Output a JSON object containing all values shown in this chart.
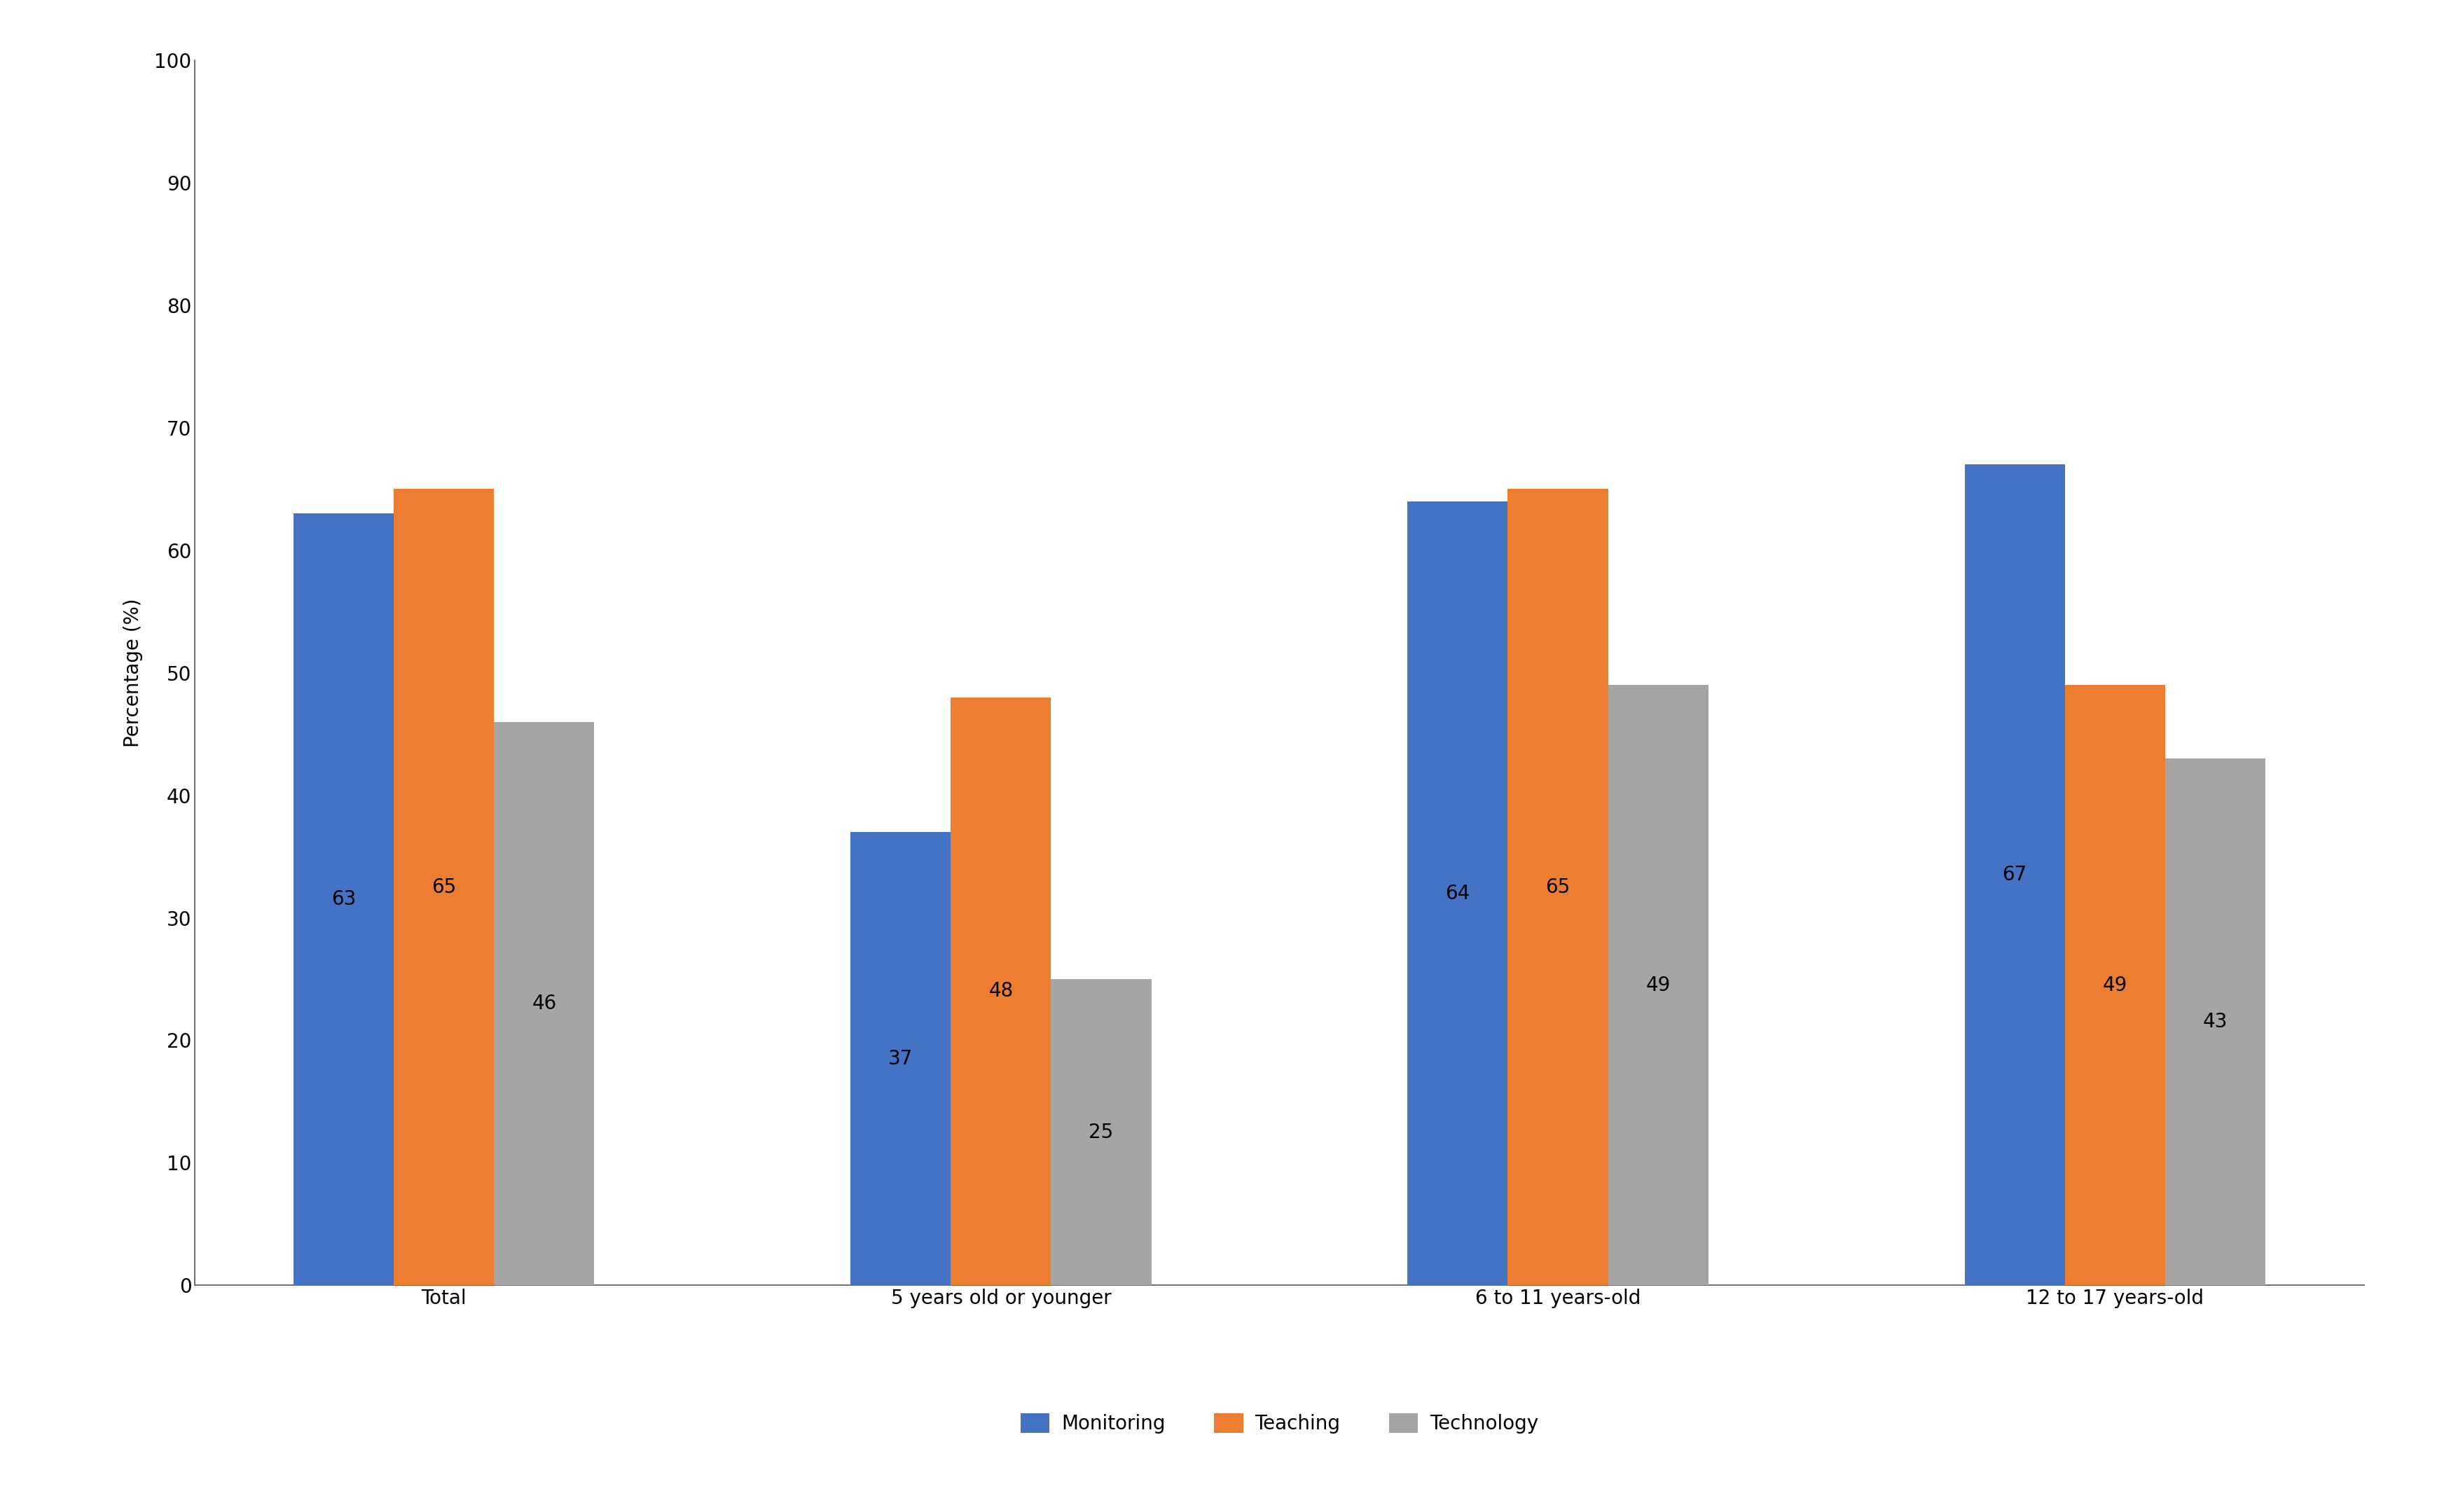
{
  "categories": [
    "Total",
    "5 years old or younger",
    "6 to 11 years-old",
    "12 to 17 years-old"
  ],
  "series": {
    "Monitoring": [
      63,
      37,
      64,
      67
    ],
    "Teaching": [
      65,
      48,
      65,
      49
    ],
    "Technology": [
      46,
      25,
      49,
      43
    ]
  },
  "colors": {
    "Monitoring": "#4472C4",
    "Teaching": "#ED7D31",
    "Technology": "#A5A5A5"
  },
  "ylabel": "Percentage (%)",
  "ylim": [
    0,
    100
  ],
  "yticks": [
    0,
    10,
    20,
    30,
    40,
    50,
    60,
    70,
    80,
    90,
    100
  ],
  "bar_width": 0.18,
  "background_color": "#ffffff",
  "tick_fontsize": 20,
  "legend_fontsize": 20,
  "value_fontsize": 20,
  "ylabel_fontsize": 20,
  "spine_color": "#555555"
}
